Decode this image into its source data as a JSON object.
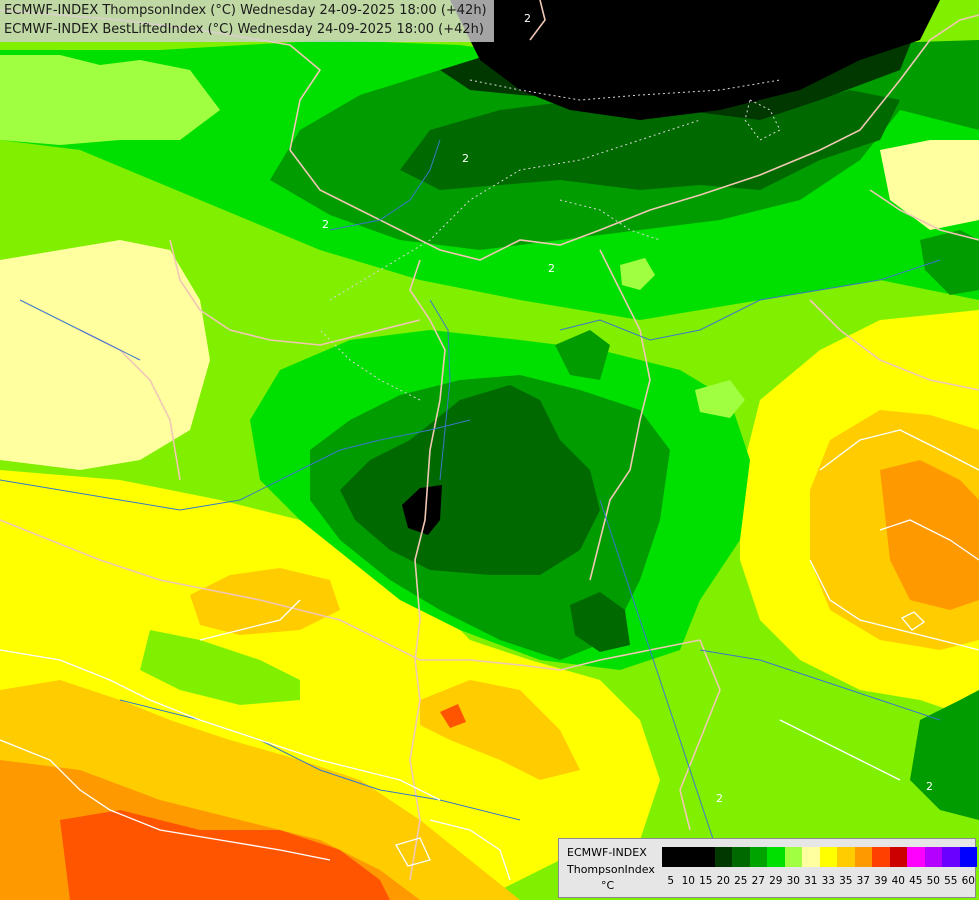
{
  "header": {
    "title_line_1": "ECMWF-INDEX ThompsonIndex (°C) Wednesday 24-09-2025 18:00 (+42h)",
    "title_line_2": "ECMWF-INDEX BestLiftedIndex (°C) Wednesday 24-09-2025 18:00 (+42h)"
  },
  "legend": {
    "line_1": "ECMWF-INDEX",
    "line_2": "ThompsonIndex",
    "line_3": "°C",
    "levels": [
      {
        "value": "5",
        "color": "#000000"
      },
      {
        "value": "10",
        "color": "#000000"
      },
      {
        "value": "15",
        "color": "#000000"
      },
      {
        "value": "20",
        "color": "#003800"
      },
      {
        "value": "25",
        "color": "#006a00"
      },
      {
        "value": "27",
        "color": "#00a400"
      },
      {
        "value": "29",
        "color": "#00e000"
      },
      {
        "value": "30",
        "color": "#a0ff40"
      },
      {
        "value": "31",
        "color": "#ffffa0"
      },
      {
        "value": "33",
        "color": "#ffff00"
      },
      {
        "value": "35",
        "color": "#ffcc00"
      },
      {
        "value": "37",
        "color": "#ff9900"
      },
      {
        "value": "39",
        "color": "#ff4000"
      },
      {
        "value": "40",
        "color": "#cc0000"
      },
      {
        "value": "45",
        "color": "#ff00ff"
      },
      {
        "value": "50",
        "color": "#b400ff"
      },
      {
        "value": "55",
        "color": "#6a00ff"
      },
      {
        "value": "60",
        "color": "#0000ff"
      }
    ]
  },
  "contour_labels": [
    "2",
    "2",
    "2",
    "2",
    "2",
    "2"
  ]
}
